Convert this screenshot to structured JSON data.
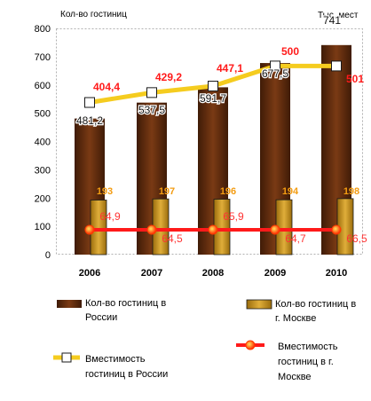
{
  "chart_data": {
    "type": "bar",
    "ylabel_left": "Кол-во гостиниц",
    "ylabel_right": "Тыс. мест",
    "categories": [
      "2006",
      "2007",
      "2008",
      "2009",
      "2010"
    ],
    "ylim": [
      0,
      800
    ],
    "yticks": [
      "0",
      "100",
      "200",
      "300",
      "400",
      "500",
      "600",
      "700",
      "800"
    ],
    "grid": false,
    "legend_position": "bottom",
    "series": [
      {
        "name": "Кол-во гостиниц в России",
        "type": "bar",
        "values": [
          481.2,
          537.5,
          591.7,
          677.5,
          741
        ],
        "labels": [
          "481,2",
          "537,5",
          "591,7",
          "677,5",
          "741"
        ],
        "color": "#5c2a0e"
      },
      {
        "name": "Кол-во гостиниц в г. Москве",
        "type": "bar",
        "values": [
          193,
          197,
          196,
          194,
          198
        ],
        "labels": [
          "193",
          "197",
          "196",
          "194",
          "198"
        ],
        "color": "#c9961c"
      },
      {
        "name": "Вместимость гостиниц в России",
        "type": "line",
        "values": [
          538,
          573,
          596,
          667,
          667
        ],
        "labels": [
          "404,4",
          "429,2",
          "447,1",
          "500",
          "501"
        ],
        "color": "#f5cc1f"
      },
      {
        "name": "Вместимость гостиниц в г. Москве",
        "type": "line",
        "values": [
          88,
          88,
          88,
          88,
          88
        ],
        "labels": [
          "64,9",
          "64,5",
          "65,9",
          "64,7",
          "66,5"
        ],
        "color": "#ff1a1a"
      }
    ],
    "legend": {
      "russia_count": [
        "Кол-во гостиниц в",
        "России"
      ],
      "moscow_count": [
        "Кол-во гостиниц в",
        "г. Москве"
      ],
      "russia_capacity": [
        "Вместимость",
        "гостиниц в России"
      ],
      "moscow_capacity": [
        "Вместимость",
        "гостиниц в г.",
        "Москве"
      ]
    }
  }
}
